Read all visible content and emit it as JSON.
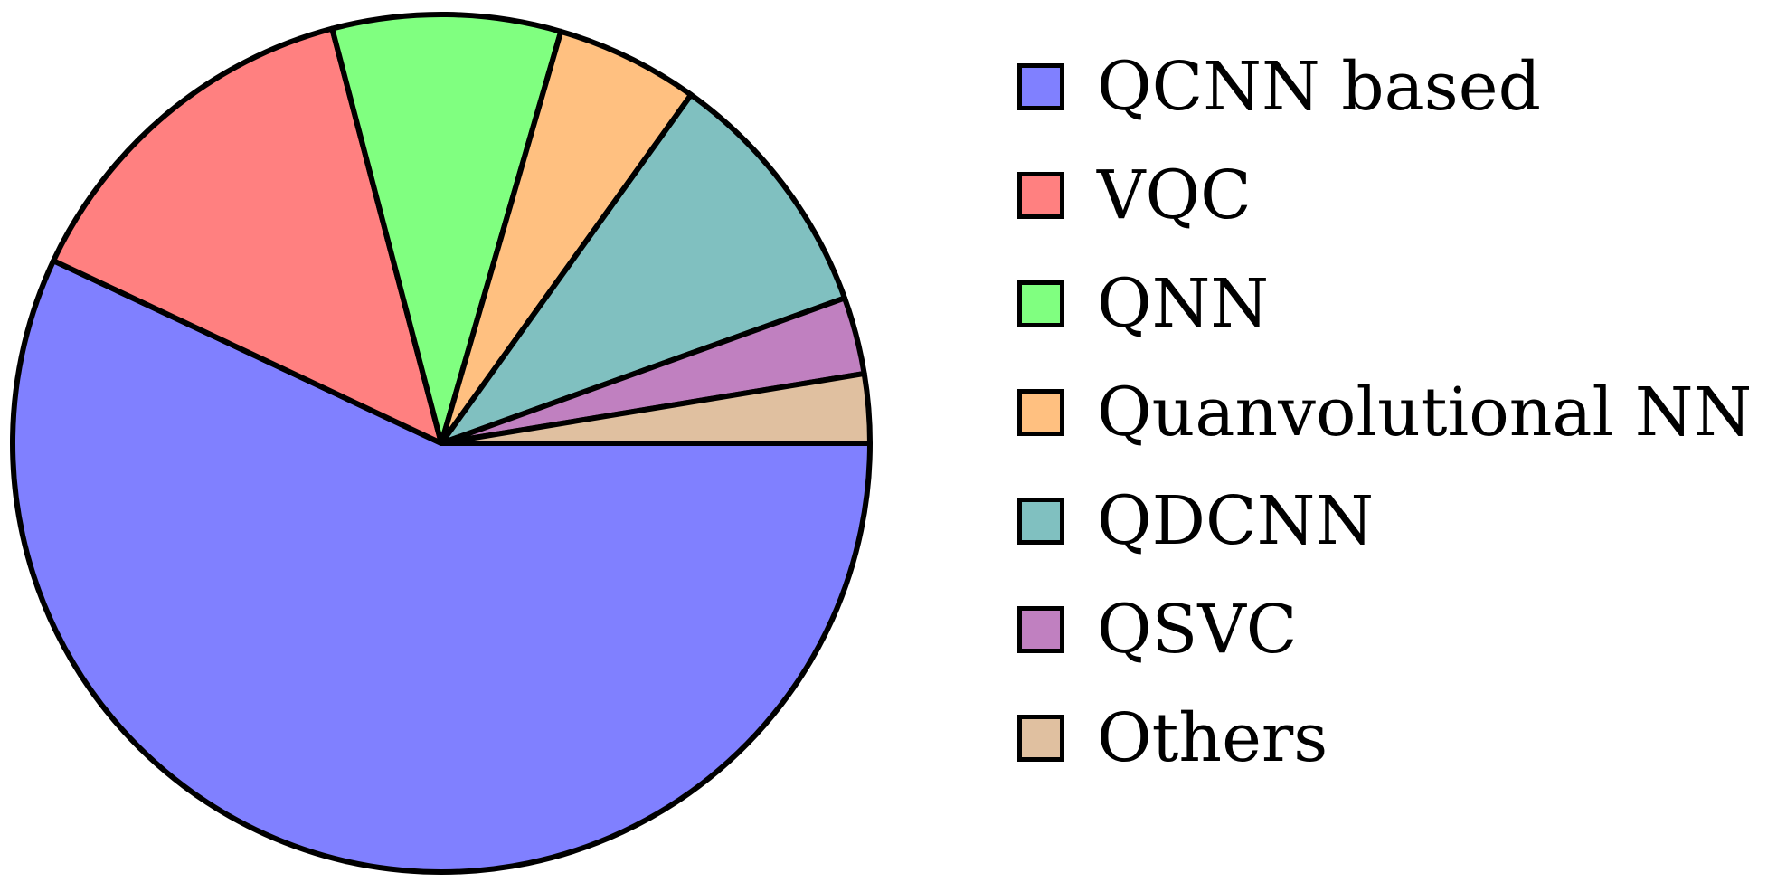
{
  "chart_data": {
    "type": "pie",
    "title": "",
    "start_angle_deg": 0,
    "direction": "clockwise",
    "slices": [
      {
        "label": "QCNN based",
        "value": 57.0,
        "color": "#8080ff"
      },
      {
        "label": "VQC",
        "value": 13.9,
        "color": "#ff8080"
      },
      {
        "label": "QNN",
        "value": 8.6,
        "color": "#80ff80"
      },
      {
        "label": "Quanvolutional NN",
        "value": 5.4,
        "color": "#ffc080"
      },
      {
        "label": "QDCNN",
        "value": 9.6,
        "color": "#80c0c0"
      },
      {
        "label": "QSVC",
        "value": 2.9,
        "color": "#c080c0"
      },
      {
        "label": "Others",
        "value": 2.6,
        "color": "#e0c0a0"
      }
    ],
    "legend_position": "right",
    "edge_color": "#000000"
  }
}
